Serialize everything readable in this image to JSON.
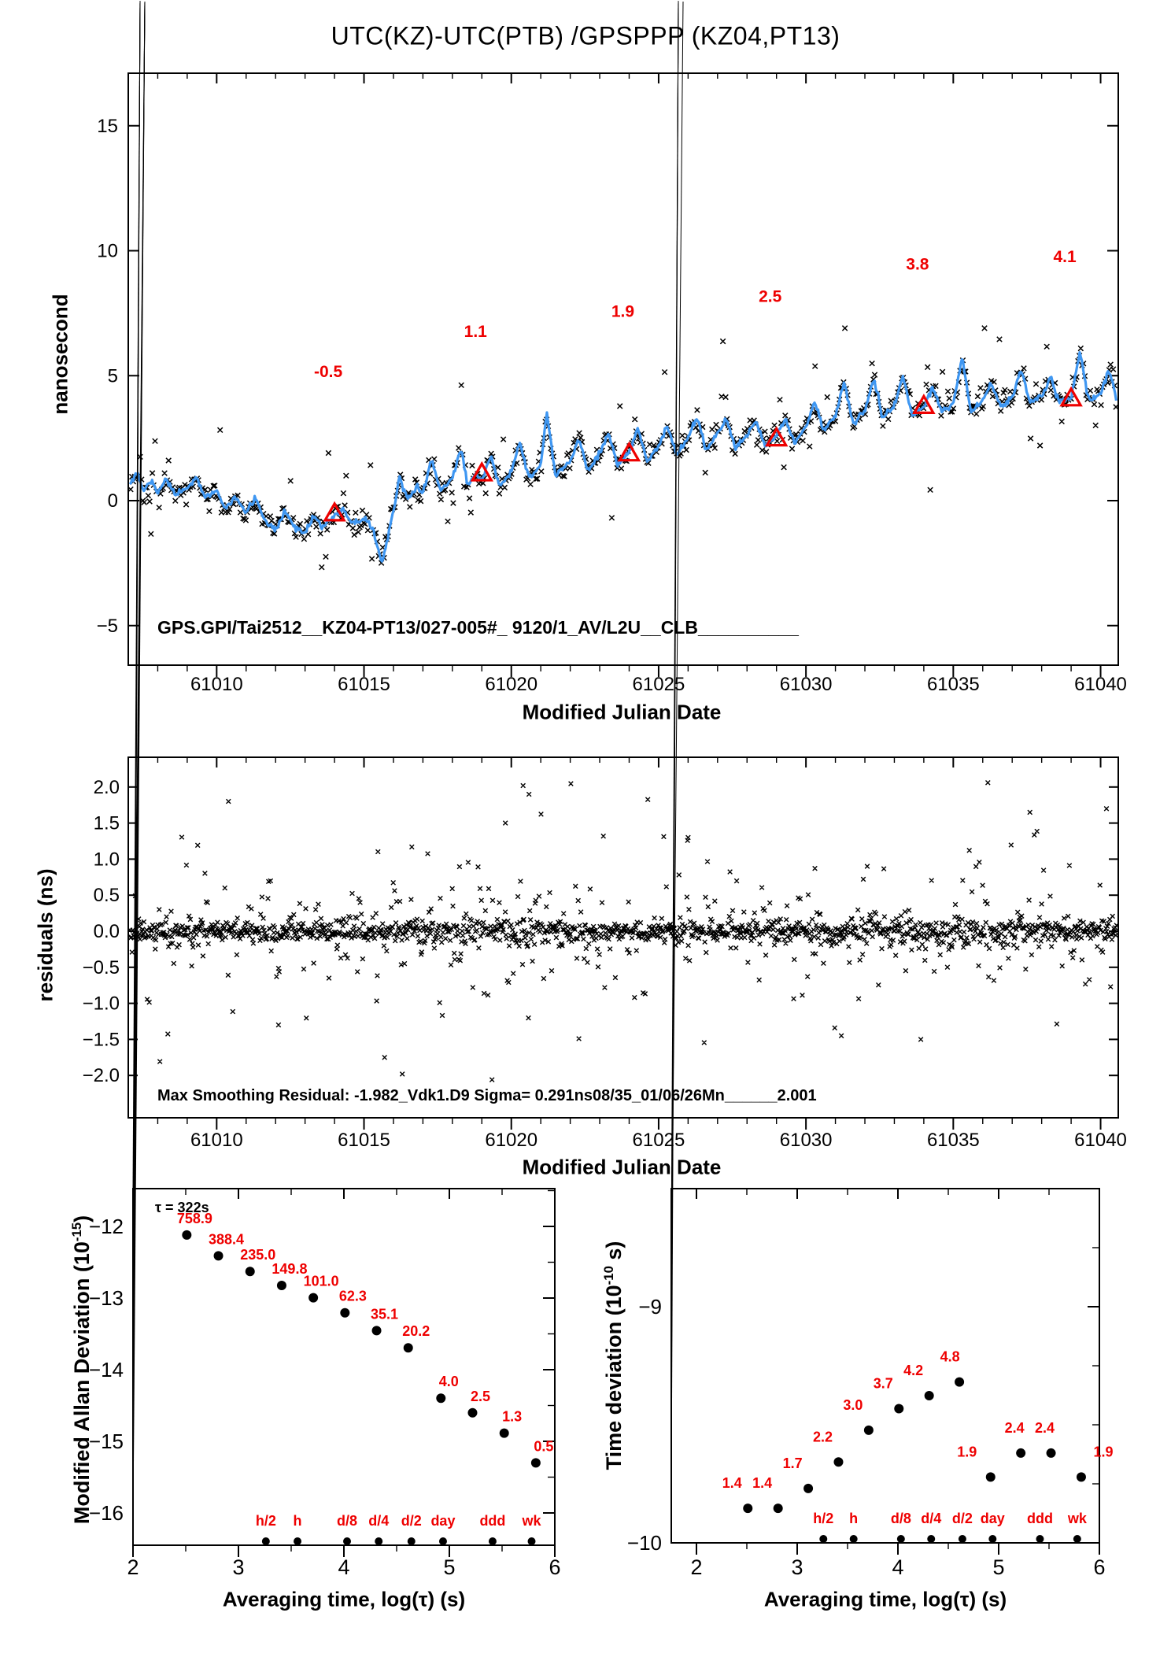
{
  "title": "UTC(KZ)-UTC(PTB)  /GPSPPP  (KZ04,PT13)",
  "colors": {
    "data_red": "#ee0000",
    "line_blue": "#3f97f2",
    "ink": "#000000",
    "background": "#ffffff"
  },
  "chart_data": [
    {
      "id": "utc_difference",
      "type": "scatter",
      "title": "UTC(KZ)-UTC(PTB)  /GPSPPP  (KZ04,PT13)",
      "xlabel": "Modified Julian Date",
      "ylabel": "nanosecond",
      "xlim": [
        61007.0,
        61040.6
      ],
      "ylim": [
        -6.6,
        17.1
      ],
      "xticks": [
        61010,
        61015,
        61020,
        61025,
        61030,
        61035,
        61040
      ],
      "xtick_minor_step": 1,
      "yticks": [
        -5,
        0,
        5,
        10,
        15
      ],
      "grid": false,
      "annotation": "GPS.GPI/Tai2512__KZ04-PT13/027-005#_  9120/1_AV/L2U__CLB__________",
      "series": [
        {
          "name": "ppp-smoothed-line",
          "color": "#3f97f2",
          "anchors": [
            [
              61007.0,
              0.6
            ],
            [
              61007.3,
              1.1
            ],
            [
              61007.5,
              0.4
            ],
            [
              61007.8,
              0.8
            ],
            [
              61008.0,
              0.3
            ],
            [
              61008.3,
              0.9
            ],
            [
              61008.6,
              0.2
            ],
            [
              61009.0,
              0.5
            ],
            [
              61009.3,
              0.9
            ],
            [
              61009.6,
              0.1
            ],
            [
              61010.0,
              0.4
            ],
            [
              61010.3,
              -0.4
            ],
            [
              61010.6,
              0.2
            ],
            [
              61011.0,
              -0.5
            ],
            [
              61011.3,
              0.1
            ],
            [
              61011.6,
              -0.7
            ],
            [
              61012.0,
              -1.2
            ],
            [
              61012.3,
              -0.4
            ],
            [
              61012.6,
              -1.0
            ],
            [
              61013.0,
              -1.3
            ],
            [
              61013.3,
              -0.6
            ],
            [
              61013.6,
              -1.1
            ],
            [
              61014.0,
              -0.6
            ],
            [
              61014.3,
              -0.3
            ],
            [
              61014.6,
              -0.9
            ],
            [
              61015.0,
              -0.7
            ],
            [
              61015.3,
              -1.1
            ],
            [
              61015.6,
              -2.5
            ],
            [
              61015.8,
              -1.6
            ],
            [
              61016.0,
              -0.4
            ],
            [
              61016.2,
              0.9
            ],
            [
              61016.5,
              0.1
            ],
            [
              61016.8,
              0.6
            ],
            [
              61017.0,
              0.3
            ],
            [
              61017.3,
              1.7
            ],
            [
              61017.6,
              0.4
            ],
            [
              61018.0,
              0.9
            ],
            [
              61018.3,
              2.1
            ],
            [
              61018.5,
              0.6
            ],
            [
              61018.8,
              1.1
            ],
            [
              61019.0,
              0.8
            ],
            [
              61019.3,
              1.8
            ],
            [
              61019.6,
              0.6
            ],
            [
              61020.0,
              1.2
            ],
            [
              61020.3,
              2.3
            ],
            [
              61020.6,
              0.9
            ],
            [
              61021.0,
              1.4
            ],
            [
              61021.2,
              3.5
            ],
            [
              61021.5,
              1.0
            ],
            [
              61022.0,
              1.6
            ],
            [
              61022.3,
              2.5
            ],
            [
              61022.6,
              1.2
            ],
            [
              61023.0,
              1.9
            ],
            [
              61023.3,
              2.7
            ],
            [
              61023.6,
              1.4
            ],
            [
              61024.0,
              2.0
            ],
            [
              61024.3,
              2.9
            ],
            [
              61024.6,
              1.6
            ],
            [
              61025.0,
              2.2
            ],
            [
              61025.3,
              3.0
            ],
            [
              61025.6,
              1.8
            ],
            [
              61026.0,
              2.5
            ],
            [
              61026.3,
              3.4
            ],
            [
              61026.6,
              2.0
            ],
            [
              61027.0,
              2.7
            ],
            [
              61027.3,
              3.3
            ],
            [
              61027.6,
              2.1
            ],
            [
              61028.0,
              2.6
            ],
            [
              61028.3,
              3.2
            ],
            [
              61028.6,
              2.2
            ],
            [
              61029.0,
              2.6
            ],
            [
              61029.3,
              3.3
            ],
            [
              61029.6,
              2.3
            ],
            [
              61030.0,
              2.9
            ],
            [
              61030.3,
              4.0
            ],
            [
              61030.6,
              2.8
            ],
            [
              61031.0,
              3.4
            ],
            [
              61031.3,
              4.7
            ],
            [
              61031.6,
              3.1
            ],
            [
              61032.0,
              3.6
            ],
            [
              61032.3,
              4.9
            ],
            [
              61032.6,
              3.3
            ],
            [
              61033.0,
              3.8
            ],
            [
              61033.3,
              5.0
            ],
            [
              61033.6,
              3.4
            ],
            [
              61034.0,
              3.8
            ],
            [
              61034.3,
              4.5
            ],
            [
              61034.6,
              3.6
            ],
            [
              61035.0,
              3.9
            ],
            [
              61035.3,
              5.7
            ],
            [
              61035.6,
              3.6
            ],
            [
              61036.0,
              4.0
            ],
            [
              61036.3,
              4.7
            ],
            [
              61036.6,
              3.8
            ],
            [
              61037.0,
              4.1
            ],
            [
              61037.3,
              5.3
            ],
            [
              61037.6,
              3.9
            ],
            [
              61038.0,
              4.2
            ],
            [
              61038.3,
              4.9
            ],
            [
              61038.6,
              4.0
            ],
            [
              61039.0,
              4.1
            ],
            [
              61039.3,
              6.0
            ],
            [
              61039.6,
              4.0
            ],
            [
              61040.0,
              4.3
            ],
            [
              61040.3,
              5.2
            ],
            [
              61040.5,
              4.2
            ]
          ]
        },
        {
          "name": "raw-points-x",
          "color": "#000000",
          "derived_from": "ppp-smoothed-line",
          "noise_sd_ns": 0.22,
          "outlier_fraction": 0.1,
          "outlier_sd_ns": 1.1,
          "rare_outlier_fraction": 0.035,
          "rare_outlier_sd_ns": 1.0,
          "clamp_ns": [
            -3.3,
            6.9
          ]
        },
        {
          "name": "calibration-triangles",
          "color": "#ee0000",
          "x": [
            61014,
            61019,
            61024,
            61029,
            61034,
            61039
          ],
          "y": [
            -0.5,
            1.1,
            1.9,
            2.5,
            3.8,
            4.1
          ],
          "labels": [
            "-0.5",
            "1.1",
            "1.9",
            "2.5",
            "3.8",
            "4.1"
          ]
        }
      ]
    },
    {
      "id": "residuals",
      "type": "scatter",
      "xlabel": "Modified Julian Date",
      "ylabel": "residuals (ns)",
      "xlim": [
        61007.0,
        61040.6
      ],
      "ylim": [
        -2.59,
        2.38
      ],
      "xticks": [
        61010,
        61015,
        61020,
        61025,
        61030,
        61035,
        61040
      ],
      "xtick_minor_step": 1,
      "yticks": [
        2.0,
        1.5,
        1.0,
        0.5,
        0.0,
        -0.5,
        -1.0,
        -1.5,
        -2.0
      ],
      "annotation": "Max Smoothing Residual: -1.982_Vdk1.D9  Sigma= 0.291ns08/35_01/06/26Mn______2.001",
      "series": [
        {
          "name": "smoothing-residuals-x",
          "color": "#000000",
          "mean_ns": 0.0,
          "sigma_ns": 0.291,
          "clamp_ns": 2.06,
          "extreme_points": [
            [
              61016.3,
              -1.98
            ],
            [
              61020.4,
              2.02
            ],
            [
              61020.6,
              1.9
            ],
            [
              61010.4,
              1.8
            ],
            [
              61015.7,
              -1.75
            ],
            [
              61037.6,
              1.65
            ],
            [
              61033.9,
              -1.5
            ],
            [
              61031.2,
              -1.45
            ],
            [
              61040.2,
              1.7
            ],
            [
              61012.1,
              -1.3
            ],
            [
              61019.8,
              1.5
            ],
            [
              61026.0,
              1.3
            ]
          ]
        }
      ]
    },
    {
      "id": "mdev",
      "type": "scatter",
      "xlabel": "Averaging time, log(τ) (s)",
      "ylabel_prefix": "Modified Allan Deviation (10",
      "ylabel_sup": "-15",
      "ylabel_suffix": ")",
      "xlim": [
        2,
        6
      ],
      "ylim": [
        -16.45,
        -11.47
      ],
      "xticks": [
        2,
        3,
        4,
        5,
        6
      ],
      "xtick_minor_step": 0.5,
      "yticks": [
        -12,
        -13,
        -14,
        -15,
        -16
      ],
      "ytick_minor_step": 0.5,
      "tau_note": "τ = 322s",
      "log_tau": [
        2.51,
        2.81,
        3.11,
        3.41,
        3.71,
        4.01,
        4.31,
        4.61,
        4.92,
        5.22,
        5.52,
        5.82
      ],
      "values_1e15": [
        758.9,
        388.4,
        235.0,
        149.8,
        101.0,
        62.3,
        35.1,
        20.2,
        4.0,
        2.5,
        1.3,
        0.5
      ],
      "value_labels": [
        "758.9",
        "388.4",
        "235.0",
        "149.8",
        "101.0",
        "62.3",
        "35.1",
        "20.2",
        "4.0",
        "2.5",
        "1.3",
        "0.5"
      ],
      "time_marks": {
        "labels": [
          "h/2",
          "h",
          "d/8",
          "d/4",
          "d/2",
          "day",
          "ddd",
          "wk"
        ],
        "log_tau": [
          3.26,
          3.56,
          4.03,
          4.33,
          4.64,
          4.94,
          5.41,
          5.78
        ]
      }
    },
    {
      "id": "tdev",
      "type": "scatter",
      "xlabel": "Averaging time, log(τ) (s)",
      "ylabel_prefix": "Time deviation (10",
      "ylabel_sup": "-10",
      "ylabel_suffix": " s)",
      "xlim": [
        1.75,
        6
      ],
      "ylim": [
        -10,
        -8.5
      ],
      "xticks": [
        2,
        3,
        4,
        5,
        6
      ],
      "xtick_minor_step": 0.5,
      "yticks": [
        -9,
        -10
      ],
      "ytick_minor_step": 0.25,
      "log_tau": [
        2.51,
        2.81,
        3.11,
        3.41,
        3.71,
        4.01,
        4.31,
        4.61,
        4.92,
        5.22,
        5.52,
        5.82
      ],
      "values_1e10": [
        1.4,
        1.4,
        1.7,
        2.2,
        3.0,
        3.7,
        4.2,
        4.8,
        1.9,
        2.4,
        2.4,
        1.9
      ],
      "value_labels": [
        "1.4",
        "1.4",
        "1.7",
        "2.2",
        "3.0",
        "3.7",
        "4.2",
        "4.8",
        "1.9",
        "2.4",
        "2.4",
        "1.9"
      ],
      "label_dx": [
        -20,
        -20,
        -20,
        -20,
        -20,
        -20,
        -20,
        -12,
        -30,
        -8,
        -8,
        28
      ],
      "time_marks": {
        "labels": [
          "h/2",
          "h",
          "d/8",
          "d/4",
          "d/2",
          "day",
          "ddd",
          "wk"
        ],
        "log_tau": [
          3.26,
          3.56,
          4.03,
          4.33,
          4.64,
          4.94,
          5.41,
          5.78
        ]
      }
    }
  ]
}
